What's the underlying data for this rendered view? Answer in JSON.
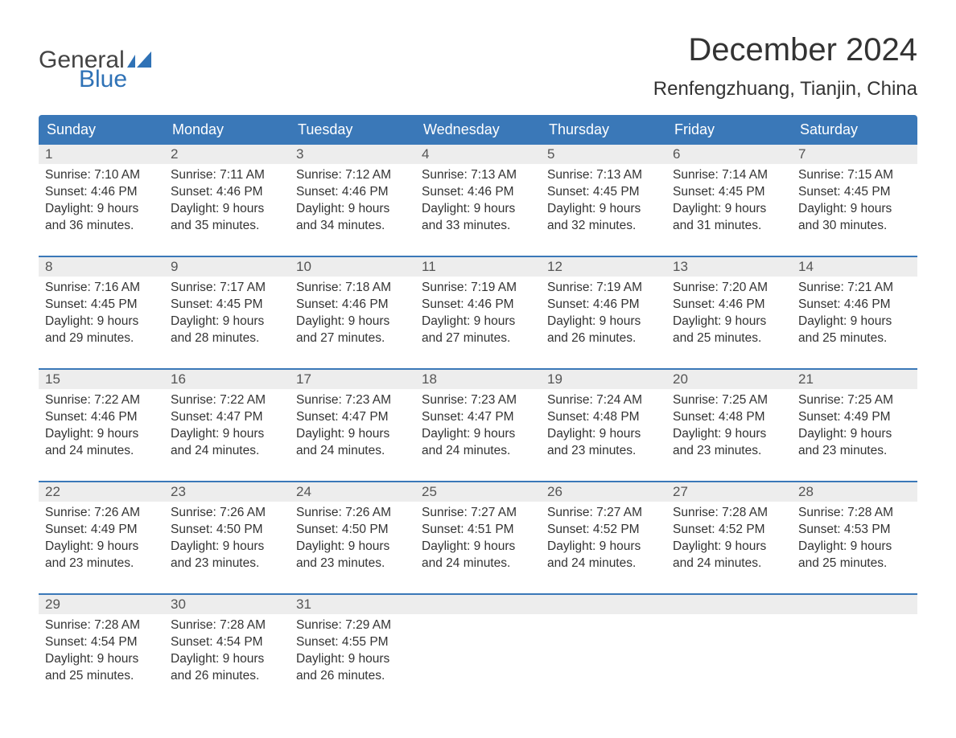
{
  "logo": {
    "text_general": "General",
    "text_blue": "Blue",
    "general_color": "#444444",
    "blue_color": "#2f72b6",
    "flag_color": "#2f72b6"
  },
  "header": {
    "month_title": "December 2024",
    "location": "Renfengzhuang, Tianjin, China"
  },
  "colors": {
    "header_bg": "#3a78b8",
    "header_text": "#ffffff",
    "daynum_bg": "#ededed",
    "daynum_text": "#555555",
    "body_text": "#333333",
    "row_border": "#3a78b8",
    "page_bg": "#ffffff"
  },
  "typography": {
    "title_fontsize": 40,
    "location_fontsize": 24,
    "weekday_fontsize": 18,
    "daynum_fontsize": 17,
    "body_fontsize": 15.5
  },
  "weekdays": [
    "Sunday",
    "Monday",
    "Tuesday",
    "Wednesday",
    "Thursday",
    "Friday",
    "Saturday"
  ],
  "calendar": {
    "type": "table",
    "weeks": [
      [
        {
          "day": "1",
          "sunrise": "Sunrise: 7:10 AM",
          "sunset": "Sunset: 4:46 PM",
          "daylight1": "Daylight: 9 hours",
          "daylight2": "and 36 minutes."
        },
        {
          "day": "2",
          "sunrise": "Sunrise: 7:11 AM",
          "sunset": "Sunset: 4:46 PM",
          "daylight1": "Daylight: 9 hours",
          "daylight2": "and 35 minutes."
        },
        {
          "day": "3",
          "sunrise": "Sunrise: 7:12 AM",
          "sunset": "Sunset: 4:46 PM",
          "daylight1": "Daylight: 9 hours",
          "daylight2": "and 34 minutes."
        },
        {
          "day": "4",
          "sunrise": "Sunrise: 7:13 AM",
          "sunset": "Sunset: 4:46 PM",
          "daylight1": "Daylight: 9 hours",
          "daylight2": "and 33 minutes."
        },
        {
          "day": "5",
          "sunrise": "Sunrise: 7:13 AM",
          "sunset": "Sunset: 4:45 PM",
          "daylight1": "Daylight: 9 hours",
          "daylight2": "and 32 minutes."
        },
        {
          "day": "6",
          "sunrise": "Sunrise: 7:14 AM",
          "sunset": "Sunset: 4:45 PM",
          "daylight1": "Daylight: 9 hours",
          "daylight2": "and 31 minutes."
        },
        {
          "day": "7",
          "sunrise": "Sunrise: 7:15 AM",
          "sunset": "Sunset: 4:45 PM",
          "daylight1": "Daylight: 9 hours",
          "daylight2": "and 30 minutes."
        }
      ],
      [
        {
          "day": "8",
          "sunrise": "Sunrise: 7:16 AM",
          "sunset": "Sunset: 4:45 PM",
          "daylight1": "Daylight: 9 hours",
          "daylight2": "and 29 minutes."
        },
        {
          "day": "9",
          "sunrise": "Sunrise: 7:17 AM",
          "sunset": "Sunset: 4:45 PM",
          "daylight1": "Daylight: 9 hours",
          "daylight2": "and 28 minutes."
        },
        {
          "day": "10",
          "sunrise": "Sunrise: 7:18 AM",
          "sunset": "Sunset: 4:46 PM",
          "daylight1": "Daylight: 9 hours",
          "daylight2": "and 27 minutes."
        },
        {
          "day": "11",
          "sunrise": "Sunrise: 7:19 AM",
          "sunset": "Sunset: 4:46 PM",
          "daylight1": "Daylight: 9 hours",
          "daylight2": "and 27 minutes."
        },
        {
          "day": "12",
          "sunrise": "Sunrise: 7:19 AM",
          "sunset": "Sunset: 4:46 PM",
          "daylight1": "Daylight: 9 hours",
          "daylight2": "and 26 minutes."
        },
        {
          "day": "13",
          "sunrise": "Sunrise: 7:20 AM",
          "sunset": "Sunset: 4:46 PM",
          "daylight1": "Daylight: 9 hours",
          "daylight2": "and 25 minutes."
        },
        {
          "day": "14",
          "sunrise": "Sunrise: 7:21 AM",
          "sunset": "Sunset: 4:46 PM",
          "daylight1": "Daylight: 9 hours",
          "daylight2": "and 25 minutes."
        }
      ],
      [
        {
          "day": "15",
          "sunrise": "Sunrise: 7:22 AM",
          "sunset": "Sunset: 4:46 PM",
          "daylight1": "Daylight: 9 hours",
          "daylight2": "and 24 minutes."
        },
        {
          "day": "16",
          "sunrise": "Sunrise: 7:22 AM",
          "sunset": "Sunset: 4:47 PM",
          "daylight1": "Daylight: 9 hours",
          "daylight2": "and 24 minutes."
        },
        {
          "day": "17",
          "sunrise": "Sunrise: 7:23 AM",
          "sunset": "Sunset: 4:47 PM",
          "daylight1": "Daylight: 9 hours",
          "daylight2": "and 24 minutes."
        },
        {
          "day": "18",
          "sunrise": "Sunrise: 7:23 AM",
          "sunset": "Sunset: 4:47 PM",
          "daylight1": "Daylight: 9 hours",
          "daylight2": "and 24 minutes."
        },
        {
          "day": "19",
          "sunrise": "Sunrise: 7:24 AM",
          "sunset": "Sunset: 4:48 PM",
          "daylight1": "Daylight: 9 hours",
          "daylight2": "and 23 minutes."
        },
        {
          "day": "20",
          "sunrise": "Sunrise: 7:25 AM",
          "sunset": "Sunset: 4:48 PM",
          "daylight1": "Daylight: 9 hours",
          "daylight2": "and 23 minutes."
        },
        {
          "day": "21",
          "sunrise": "Sunrise: 7:25 AM",
          "sunset": "Sunset: 4:49 PM",
          "daylight1": "Daylight: 9 hours",
          "daylight2": "and 23 minutes."
        }
      ],
      [
        {
          "day": "22",
          "sunrise": "Sunrise: 7:26 AM",
          "sunset": "Sunset: 4:49 PM",
          "daylight1": "Daylight: 9 hours",
          "daylight2": "and 23 minutes."
        },
        {
          "day": "23",
          "sunrise": "Sunrise: 7:26 AM",
          "sunset": "Sunset: 4:50 PM",
          "daylight1": "Daylight: 9 hours",
          "daylight2": "and 23 minutes."
        },
        {
          "day": "24",
          "sunrise": "Sunrise: 7:26 AM",
          "sunset": "Sunset: 4:50 PM",
          "daylight1": "Daylight: 9 hours",
          "daylight2": "and 23 minutes."
        },
        {
          "day": "25",
          "sunrise": "Sunrise: 7:27 AM",
          "sunset": "Sunset: 4:51 PM",
          "daylight1": "Daylight: 9 hours",
          "daylight2": "and 24 minutes."
        },
        {
          "day": "26",
          "sunrise": "Sunrise: 7:27 AM",
          "sunset": "Sunset: 4:52 PM",
          "daylight1": "Daylight: 9 hours",
          "daylight2": "and 24 minutes."
        },
        {
          "day": "27",
          "sunrise": "Sunrise: 7:28 AM",
          "sunset": "Sunset: 4:52 PM",
          "daylight1": "Daylight: 9 hours",
          "daylight2": "and 24 minutes."
        },
        {
          "day": "28",
          "sunrise": "Sunrise: 7:28 AM",
          "sunset": "Sunset: 4:53 PM",
          "daylight1": "Daylight: 9 hours",
          "daylight2": "and 25 minutes."
        }
      ],
      [
        {
          "day": "29",
          "sunrise": "Sunrise: 7:28 AM",
          "sunset": "Sunset: 4:54 PM",
          "daylight1": "Daylight: 9 hours",
          "daylight2": "and 25 minutes."
        },
        {
          "day": "30",
          "sunrise": "Sunrise: 7:28 AM",
          "sunset": "Sunset: 4:54 PM",
          "daylight1": "Daylight: 9 hours",
          "daylight2": "and 26 minutes."
        },
        {
          "day": "31",
          "sunrise": "Sunrise: 7:29 AM",
          "sunset": "Sunset: 4:55 PM",
          "daylight1": "Daylight: 9 hours",
          "daylight2": "and 26 minutes."
        },
        {
          "day": "",
          "sunrise": "",
          "sunset": "",
          "daylight1": "",
          "daylight2": ""
        },
        {
          "day": "",
          "sunrise": "",
          "sunset": "",
          "daylight1": "",
          "daylight2": ""
        },
        {
          "day": "",
          "sunrise": "",
          "sunset": "",
          "daylight1": "",
          "daylight2": ""
        },
        {
          "day": "",
          "sunrise": "",
          "sunset": "",
          "daylight1": "",
          "daylight2": ""
        }
      ]
    ]
  }
}
